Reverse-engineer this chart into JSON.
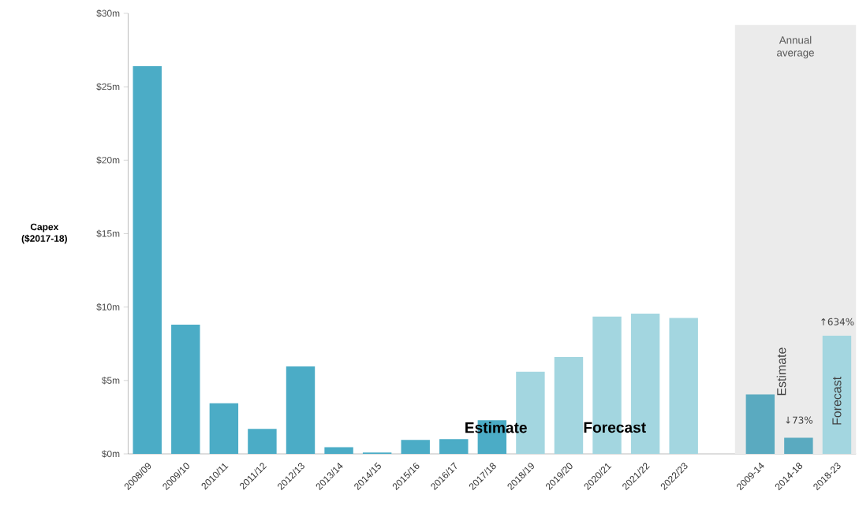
{
  "chart_data": {
    "type": "bar",
    "ylabel": "Capex ($2017-18)",
    "categories": [
      "2008/09",
      "2009/10",
      "2010/11",
      "2011/12",
      "2012/13",
      "2013/14",
      "2014/15",
      "2015/16",
      "2016/17",
      "2017/18",
      "2018/19",
      "2019/20",
      "2020/21",
      "2021/22",
      "2022/23",
      null,
      "2009-14",
      "2014-18",
      "2018-23"
    ],
    "values": [
      26.4,
      8.8,
      3.45,
      1.7,
      5.95,
      0.45,
      0.1,
      0.95,
      1.0,
      2.3,
      5.6,
      6.6,
      9.35,
      9.55,
      9.25,
      null,
      4.05,
      1.1,
      8.05
    ],
    "colors": [
      "#4bacc6",
      "#4bacc6",
      "#4bacc6",
      "#4bacc6",
      "#4bacc6",
      "#4bacc6",
      "#4bacc6",
      "#4bacc6",
      "#4bacc6",
      "#4bacc6",
      "#a3d6e0",
      "#a3d6e0",
      "#a3d6e0",
      "#a3d6e0",
      "#a3d6e0",
      "#ffffff",
      "#5aaac0",
      "#5aaac0",
      "#a3d6e0"
    ],
    "ylim": [
      0,
      30
    ],
    "yticks": [
      {
        "value": 0,
        "label": "$0m"
      },
      {
        "value": 5,
        "label": "$5m"
      },
      {
        "value": 10,
        "label": "$10m"
      },
      {
        "value": 15,
        "label": "$15m"
      },
      {
        "value": 20,
        "label": "$20m"
      },
      {
        "value": 25,
        "label": "$25m"
      },
      {
        "value": 30,
        "label": "$30m"
      }
    ],
    "bands": [
      {
        "axis": "x",
        "from": "2009-14",
        "to": "2018-23",
        "label": "Annual average",
        "color": "#ebebeb"
      }
    ],
    "annotations": [
      "**Estimate**",
      "**Forecast**",
      "Estimate",
      "Forecast",
      "↓73%",
      "↑634%"
    ],
    "grid": false
  }
}
